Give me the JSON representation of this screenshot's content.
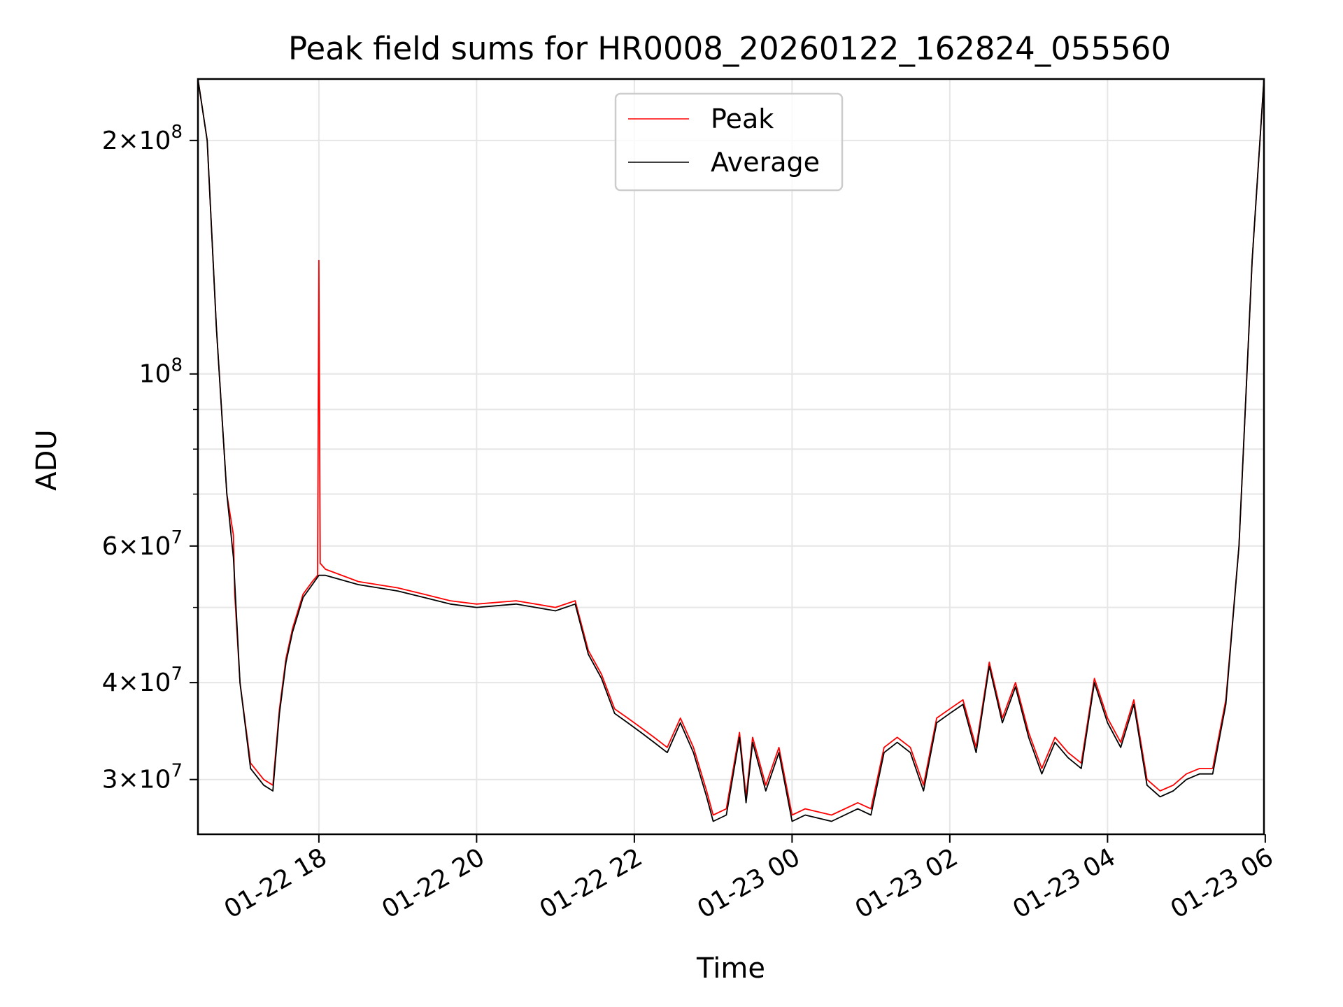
{
  "chart_data": {
    "type": "line",
    "title": "Peak field sums for HR0008_20260122_162824_055560",
    "xlabel": "Time",
    "ylabel": "ADU",
    "y_scale": "log",
    "ylim": [
      25500000,
      240000000
    ],
    "xlim": [
      "2026-01-22 16:28",
      "2026-01-23 05:59"
    ],
    "grid": true,
    "legend_position": "upper center",
    "x_ticks": [
      {
        "t": "2026-01-22 18:00",
        "label": "01-22 18"
      },
      {
        "t": "2026-01-22 20:00",
        "label": "01-22 20"
      },
      {
        "t": "2026-01-22 22:00",
        "label": "01-22 22"
      },
      {
        "t": "2026-01-23 00:00",
        "label": "01-23 00"
      },
      {
        "t": "2026-01-23 02:00",
        "label": "01-23 02"
      },
      {
        "t": "2026-01-23 04:00",
        "label": "01-23 04"
      },
      {
        "t": "2026-01-23 06:00",
        "label": "01-23 06"
      }
    ],
    "y_ticks": [
      {
        "value": 30000000,
        "mant": "3",
        "exp": "7"
      },
      {
        "value": 40000000,
        "mant": "4",
        "exp": "7"
      },
      {
        "value": 60000000,
        "mant": "6",
        "exp": "7"
      },
      {
        "value": 100000000,
        "mant": "",
        "exp": "8"
      },
      {
        "value": 200000000,
        "mant": "2",
        "exp": "8"
      }
    ],
    "y_minor_ticks": [
      50000000,
      70000000,
      80000000,
      90000000
    ],
    "series": [
      {
        "name": "Peak",
        "color": "#ff0000",
        "x": [
          "2026-01-22 16:28",
          "2026-01-22 16:35",
          "2026-01-22 16:42",
          "2026-01-22 16:50",
          "2026-01-22 16:55",
          "2026-01-22 16:56",
          "2026-01-22 17:00",
          "2026-01-22 17:08",
          "2026-01-22 17:18",
          "2026-01-22 17:25",
          "2026-01-22 17:30",
          "2026-01-22 17:35",
          "2026-01-22 17:40",
          "2026-01-22 17:48",
          "2026-01-22 17:55",
          "2026-01-22 17:59",
          "2026-01-22 18:00",
          "2026-01-22 18:01",
          "2026-01-22 18:05",
          "2026-01-22 18:30",
          "2026-01-22 19:00",
          "2026-01-22 19:20",
          "2026-01-22 19:40",
          "2026-01-22 20:00",
          "2026-01-22 20:30",
          "2026-01-22 20:45",
          "2026-01-22 21:00",
          "2026-01-22 21:15",
          "2026-01-22 21:25",
          "2026-01-22 21:35",
          "2026-01-22 21:45",
          "2026-01-22 21:55",
          "2026-01-22 22:05",
          "2026-01-22 22:15",
          "2026-01-22 22:25",
          "2026-01-22 22:35",
          "2026-01-22 22:45",
          "2026-01-22 22:55",
          "2026-01-22 23:00",
          "2026-01-22 23:10",
          "2026-01-22 23:20",
          "2026-01-22 23:25",
          "2026-01-22 23:30",
          "2026-01-22 23:40",
          "2026-01-22 23:50",
          "2026-01-23 00:00",
          "2026-01-23 00:10",
          "2026-01-23 00:30",
          "2026-01-23 00:50",
          "2026-01-23 01:00",
          "2026-01-23 01:10",
          "2026-01-23 01:20",
          "2026-01-23 01:30",
          "2026-01-23 01:40",
          "2026-01-23 01:50",
          "2026-01-23 02:00",
          "2026-01-23 02:10",
          "2026-01-23 02:20",
          "2026-01-23 02:30",
          "2026-01-23 02:40",
          "2026-01-23 02:50",
          "2026-01-23 03:00",
          "2026-01-23 03:10",
          "2026-01-23 03:20",
          "2026-01-23 03:30",
          "2026-01-23 03:40",
          "2026-01-23 03:50",
          "2026-01-23 04:00",
          "2026-01-23 04:10",
          "2026-01-23 04:20",
          "2026-01-23 04:30",
          "2026-01-23 04:40",
          "2026-01-23 04:50",
          "2026-01-23 05:00",
          "2026-01-23 05:10",
          "2026-01-23 05:20",
          "2026-01-23 05:30",
          "2026-01-23 05:40",
          "2026-01-23 05:50",
          "2026-01-23 05:59"
        ],
        "y": [
          240000000,
          200000000,
          115000000,
          70000000,
          62000000,
          52000000,
          40000000,
          31500000,
          30000000,
          29500000,
          37000000,
          43000000,
          47000000,
          52000000,
          54000000,
          55000000,
          140000000,
          57000000,
          56000000,
          54000000,
          53000000,
          52000000,
          51000000,
          50500000,
          51000000,
          50500000,
          50000000,
          51000000,
          44000000,
          41000000,
          37000000,
          36000000,
          35000000,
          34000000,
          33000000,
          36000000,
          33000000,
          29000000,
          27000000,
          27500000,
          34500000,
          28500000,
          34000000,
          29500000,
          33000000,
          27000000,
          27500000,
          27000000,
          28000000,
          27500000,
          33000000,
          34000000,
          33000000,
          29500000,
          36000000,
          37000000,
          38000000,
          33000000,
          42500000,
          36000000,
          40000000,
          34500000,
          31000000,
          34000000,
          32500000,
          31500000,
          40500000,
          36000000,
          33500000,
          38000000,
          30000000,
          29000000,
          29500000,
          30500000,
          31000000,
          31000000,
          38000000,
          60000000,
          140000000,
          240000000
        ]
      },
      {
        "name": "Average",
        "color": "#000000",
        "x": [
          "2026-01-22 16:28",
          "2026-01-22 16:35",
          "2026-01-22 16:42",
          "2026-01-22 16:50",
          "2026-01-22 16:55",
          "2026-01-22 17:00",
          "2026-01-22 17:08",
          "2026-01-22 17:18",
          "2026-01-22 17:25",
          "2026-01-22 17:30",
          "2026-01-22 17:35",
          "2026-01-22 17:40",
          "2026-01-22 17:48",
          "2026-01-22 17:55",
          "2026-01-22 18:00",
          "2026-01-22 18:05",
          "2026-01-22 18:30",
          "2026-01-22 19:00",
          "2026-01-22 19:20",
          "2026-01-22 19:40",
          "2026-01-22 20:00",
          "2026-01-22 20:30",
          "2026-01-22 20:45",
          "2026-01-22 21:00",
          "2026-01-22 21:15",
          "2026-01-22 21:25",
          "2026-01-22 21:35",
          "2026-01-22 21:45",
          "2026-01-22 21:55",
          "2026-01-22 22:05",
          "2026-01-22 22:15",
          "2026-01-22 22:25",
          "2026-01-22 22:35",
          "2026-01-22 22:45",
          "2026-01-22 22:55",
          "2026-01-22 23:00",
          "2026-01-22 23:10",
          "2026-01-22 23:20",
          "2026-01-22 23:25",
          "2026-01-22 23:30",
          "2026-01-22 23:40",
          "2026-01-22 23:50",
          "2026-01-23 00:00",
          "2026-01-23 00:10",
          "2026-01-23 00:30",
          "2026-01-23 00:50",
          "2026-01-23 01:00",
          "2026-01-23 01:10",
          "2026-01-23 01:20",
          "2026-01-23 01:30",
          "2026-01-23 01:40",
          "2026-01-23 01:50",
          "2026-01-23 02:00",
          "2026-01-23 02:10",
          "2026-01-23 02:20",
          "2026-01-23 02:30",
          "2026-01-23 02:40",
          "2026-01-23 02:50",
          "2026-01-23 03:00",
          "2026-01-23 03:10",
          "2026-01-23 03:20",
          "2026-01-23 03:30",
          "2026-01-23 03:40",
          "2026-01-23 03:50",
          "2026-01-23 04:00",
          "2026-01-23 04:10",
          "2026-01-23 04:20",
          "2026-01-23 04:30",
          "2026-01-23 04:40",
          "2026-01-23 04:50",
          "2026-01-23 05:00",
          "2026-01-23 05:10",
          "2026-01-23 05:20",
          "2026-01-23 05:30",
          "2026-01-23 05:40",
          "2026-01-23 05:50",
          "2026-01-23 05:59"
        ],
        "y": [
          240000000,
          200000000,
          115000000,
          70000000,
          58000000,
          40000000,
          31000000,
          29500000,
          29000000,
          36500000,
          42500000,
          46500000,
          51500000,
          53500000,
          55000000,
          55000000,
          53500000,
          52500000,
          51500000,
          50500000,
          50000000,
          50500000,
          50000000,
          49500000,
          50500000,
          43500000,
          40500000,
          36500000,
          35500000,
          34500000,
          33500000,
          32500000,
          35500000,
          32500000,
          28500000,
          26500000,
          27000000,
          34000000,
          28000000,
          33500000,
          29000000,
          32500000,
          26500000,
          27000000,
          26500000,
          27500000,
          27000000,
          32500000,
          33500000,
          32500000,
          29000000,
          35500000,
          36500000,
          37500000,
          32500000,
          42000000,
          35500000,
          39500000,
          34000000,
          30500000,
          33500000,
          32000000,
          31000000,
          40000000,
          35500000,
          33000000,
          37500000,
          29500000,
          28500000,
          29000000,
          30000000,
          30500000,
          30500000,
          37500000,
          60000000,
          140000000,
          240000000
        ]
      }
    ]
  }
}
